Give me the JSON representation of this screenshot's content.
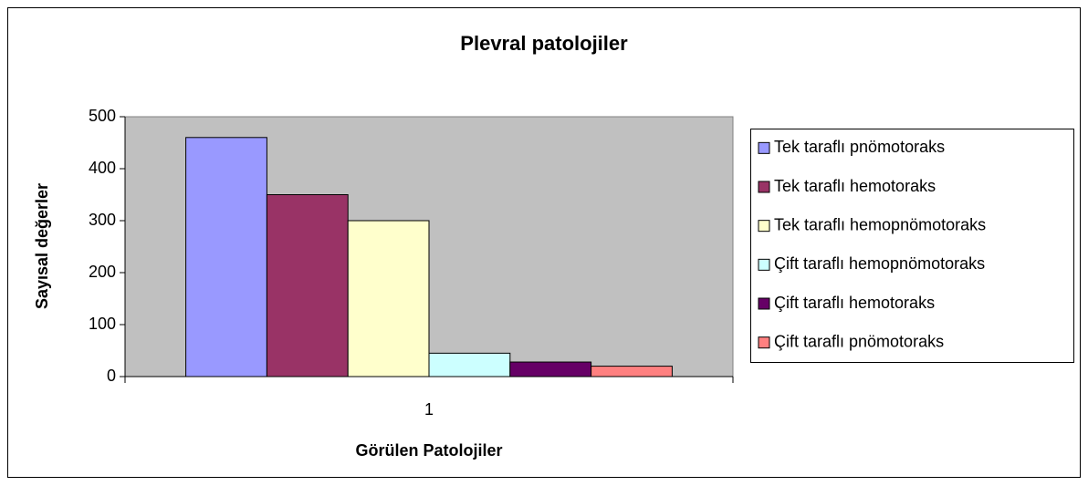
{
  "chart_data": {
    "type": "bar",
    "title": "Plevral patolojiler",
    "x_label": "Görülen Patolojiler",
    "y_label": "Sayısal değerler",
    "categories": [
      "1"
    ],
    "series": [
      {
        "name": "Tek taraflı pnömotoraks",
        "color": "#9999ff",
        "values": [
          460
        ]
      },
      {
        "name": "Tek taraflı hemotoraks",
        "color": "#993366",
        "values": [
          350
        ]
      },
      {
        "name": "Tek taraflı hemopnömotoraks",
        "color": "#ffffcc",
        "values": [
          300
        ]
      },
      {
        "name": "Çift taraflı hemopnömotoraks",
        "color": "#ccffff",
        "values": [
          45
        ]
      },
      {
        "name": "Çift taraflı hemotoraks",
        "color": "#660066",
        "values": [
          28
        ]
      },
      {
        "name": "Çift taraflı pnömotoraks",
        "color": "#ff8080",
        "values": [
          20
        ]
      }
    ],
    "ylim": [
      0,
      500
    ],
    "yticks": [
      0,
      100,
      200,
      300,
      400,
      500
    ],
    "plot_background": "#c0c0c0",
    "legend": "right"
  }
}
